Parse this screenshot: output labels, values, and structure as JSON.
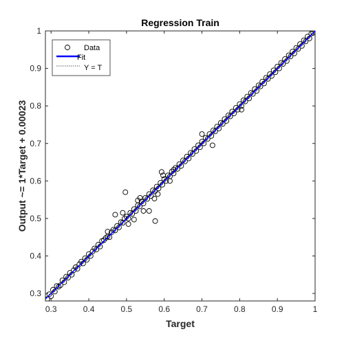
{
  "chart_data": {
    "type": "scatter",
    "title": "Regression Train",
    "xlabel": "Target",
    "ylabel": "Output ~= 1*Target + 0.00023",
    "xlim": [
      0.285,
      1.0
    ],
    "ylim": [
      0.28,
      1.0
    ],
    "xticks": [
      "0.3",
      "0.4",
      "0.5",
      "0.6",
      "0.7",
      "0.8",
      "0.9",
      "1"
    ],
    "yticks": [
      "0.3",
      "0.4",
      "0.5",
      "0.6",
      "0.7",
      "0.8",
      "0.9",
      "1"
    ],
    "grid": false,
    "legend": {
      "placement": "top-left",
      "entries": [
        "Data",
        "Fit",
        "Y = T"
      ]
    },
    "colors": {
      "data_marker": "#000000",
      "fit_line": "#0000ff",
      "identity_line": "#555555"
    },
    "fit": {
      "slope": 1,
      "intercept": 0.00023
    },
    "identity": {
      "slope": 1,
      "intercept": 0
    },
    "series": [
      {
        "name": "Data",
        "points": [
          [
            0.29,
            0.285
          ],
          [
            0.295,
            0.298
          ],
          [
            0.3,
            0.293
          ],
          [
            0.305,
            0.31
          ],
          [
            0.31,
            0.305
          ],
          [
            0.315,
            0.32
          ],
          [
            0.32,
            0.318
          ],
          [
            0.325,
            0.322
          ],
          [
            0.33,
            0.335
          ],
          [
            0.335,
            0.33
          ],
          [
            0.34,
            0.345
          ],
          [
            0.345,
            0.342
          ],
          [
            0.35,
            0.355
          ],
          [
            0.355,
            0.35
          ],
          [
            0.36,
            0.362
          ],
          [
            0.365,
            0.37
          ],
          [
            0.37,
            0.366
          ],
          [
            0.375,
            0.378
          ],
          [
            0.38,
            0.385
          ],
          [
            0.385,
            0.38
          ],
          [
            0.39,
            0.394
          ],
          [
            0.395,
            0.39
          ],
          [
            0.4,
            0.405
          ],
          [
            0.405,
            0.4
          ],
          [
            0.41,
            0.412
          ],
          [
            0.415,
            0.42
          ],
          [
            0.42,
            0.417
          ],
          [
            0.425,
            0.43
          ],
          [
            0.43,
            0.425
          ],
          [
            0.435,
            0.44
          ],
          [
            0.44,
            0.442
          ],
          [
            0.445,
            0.448
          ],
          [
            0.45,
            0.452
          ],
          [
            0.455,
            0.45
          ],
          [
            0.46,
            0.463
          ],
          [
            0.465,
            0.47
          ],
          [
            0.47,
            0.468
          ],
          [
            0.475,
            0.48
          ],
          [
            0.48,
            0.476
          ],
          [
            0.485,
            0.49
          ],
          [
            0.49,
            0.488
          ],
          [
            0.495,
            0.5
          ],
          [
            0.5,
            0.505
          ],
          [
            0.505,
            0.5
          ],
          [
            0.51,
            0.515
          ],
          [
            0.515,
            0.512
          ],
          [
            0.52,
            0.525
          ],
          [
            0.525,
            0.52
          ],
          [
            0.53,
            0.535
          ],
          [
            0.535,
            0.532
          ],
          [
            0.54,
            0.545
          ],
          [
            0.545,
            0.54
          ],
          [
            0.55,
            0.555
          ],
          [
            0.555,
            0.552
          ],
          [
            0.56,
            0.565
          ],
          [
            0.565,
            0.56
          ],
          [
            0.57,
            0.575
          ],
          [
            0.575,
            0.572
          ],
          [
            0.58,
            0.585
          ],
          [
            0.585,
            0.58
          ],
          [
            0.59,
            0.595
          ],
          [
            0.595,
            0.59
          ],
          [
            0.6,
            0.605
          ],
          [
            0.605,
            0.6
          ],
          [
            0.61,
            0.615
          ],
          [
            0.615,
            0.612
          ],
          [
            0.62,
            0.625
          ],
          [
            0.625,
            0.62
          ],
          [
            0.63,
            0.635
          ],
          [
            0.635,
            0.632
          ],
          [
            0.64,
            0.645
          ],
          [
            0.645,
            0.64
          ],
          [
            0.65,
            0.655
          ],
          [
            0.655,
            0.652
          ],
          [
            0.66,
            0.665
          ],
          [
            0.665,
            0.66
          ],
          [
            0.67,
            0.675
          ],
          [
            0.675,
            0.672
          ],
          [
            0.68,
            0.685
          ],
          [
            0.685,
            0.68
          ],
          [
            0.69,
            0.695
          ],
          [
            0.695,
            0.69
          ],
          [
            0.7,
            0.705
          ],
          [
            0.705,
            0.7
          ],
          [
            0.71,
            0.715
          ],
          [
            0.715,
            0.712
          ],
          [
            0.72,
            0.725
          ],
          [
            0.725,
            0.72
          ],
          [
            0.73,
            0.735
          ],
          [
            0.735,
            0.732
          ],
          [
            0.74,
            0.745
          ],
          [
            0.745,
            0.74
          ],
          [
            0.75,
            0.755
          ],
          [
            0.755,
            0.752
          ],
          [
            0.76,
            0.765
          ],
          [
            0.765,
            0.76
          ],
          [
            0.77,
            0.775
          ],
          [
            0.775,
            0.772
          ],
          [
            0.78,
            0.785
          ],
          [
            0.785,
            0.78
          ],
          [
            0.79,
            0.795
          ],
          [
            0.795,
            0.79
          ],
          [
            0.8,
            0.805
          ],
          [
            0.805,
            0.8
          ],
          [
            0.81,
            0.815
          ],
          [
            0.815,
            0.812
          ],
          [
            0.82,
            0.825
          ],
          [
            0.825,
            0.82
          ],
          [
            0.83,
            0.835
          ],
          [
            0.835,
            0.832
          ],
          [
            0.84,
            0.845
          ],
          [
            0.845,
            0.84
          ],
          [
            0.85,
            0.855
          ],
          [
            0.855,
            0.852
          ],
          [
            0.86,
            0.865
          ],
          [
            0.865,
            0.86
          ],
          [
            0.87,
            0.875
          ],
          [
            0.875,
            0.872
          ],
          [
            0.88,
            0.885
          ],
          [
            0.885,
            0.88
          ],
          [
            0.89,
            0.895
          ],
          [
            0.895,
            0.89
          ],
          [
            0.9,
            0.905
          ],
          [
            0.905,
            0.9
          ],
          [
            0.91,
            0.915
          ],
          [
            0.915,
            0.912
          ],
          [
            0.92,
            0.925
          ],
          [
            0.925,
            0.92
          ],
          [
            0.93,
            0.935
          ],
          [
            0.935,
            0.932
          ],
          [
            0.94,
            0.945
          ],
          [
            0.945,
            0.94
          ],
          [
            0.95,
            0.955
          ],
          [
            0.955,
            0.952
          ],
          [
            0.96,
            0.965
          ],
          [
            0.965,
            0.96
          ],
          [
            0.97,
            0.975
          ],
          [
            0.975,
            0.972
          ],
          [
            0.98,
            0.985
          ],
          [
            0.985,
            0.98
          ],
          [
            0.99,
            0.993
          ],
          [
            0.995,
            0.995
          ],
          [
            1.0,
            1.0
          ],
          [
            0.497,
            0.57
          ],
          [
            0.576,
            0.493
          ],
          [
            0.52,
            0.497
          ],
          [
            0.593,
            0.624
          ],
          [
            0.536,
            0.555
          ],
          [
            0.545,
            0.52
          ],
          [
            0.597,
            0.615
          ],
          [
            0.574,
            0.553
          ],
          [
            0.47,
            0.51
          ],
          [
            0.56,
            0.52
          ],
          [
            0.728,
            0.695
          ],
          [
            0.625,
            0.63
          ],
          [
            0.49,
            0.515
          ],
          [
            0.53,
            0.548
          ],
          [
            0.583,
            0.565
          ],
          [
            0.615,
            0.6
          ],
          [
            0.7,
            0.725
          ],
          [
            0.805,
            0.79
          ],
          [
            0.45,
            0.465
          ],
          [
            0.505,
            0.485
          ]
        ]
      }
    ]
  }
}
